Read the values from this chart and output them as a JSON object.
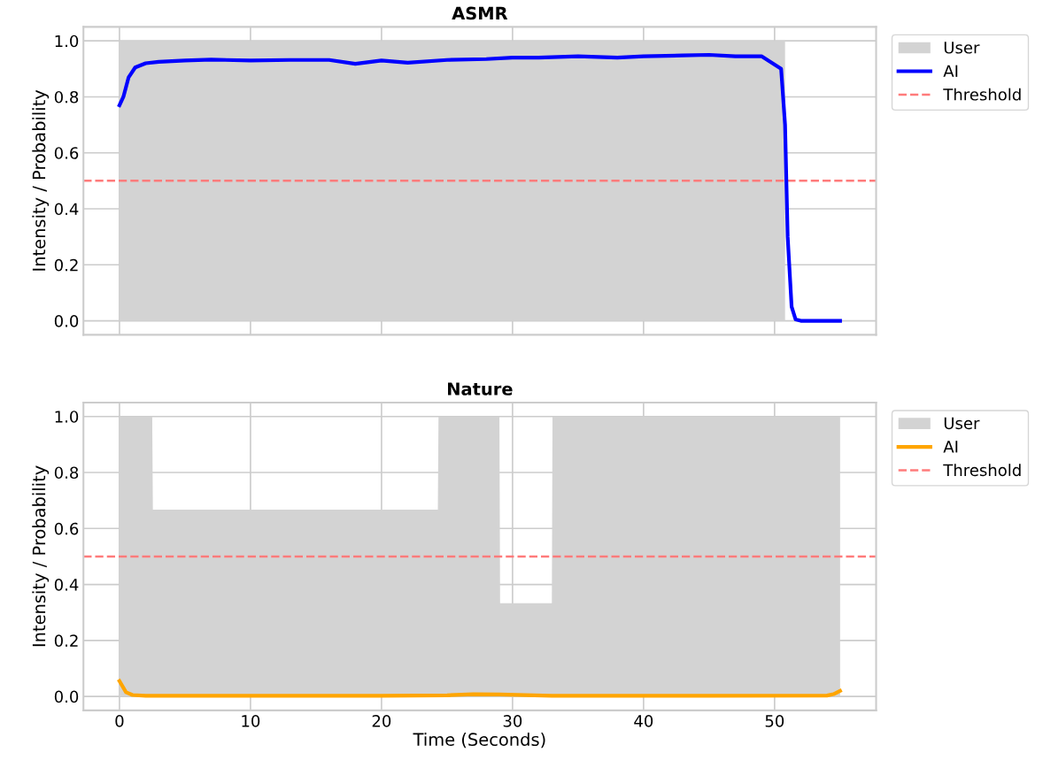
{
  "chart_data": [
    {
      "type": "line",
      "title": "ASMR",
      "ylabel": "Intensity / Probability",
      "xlim": [
        -2.75,
        57.75
      ],
      "xticks": [
        0,
        10,
        20,
        30,
        40,
        50
      ],
      "ylim": [
        -0.05,
        1.05
      ],
      "yticks": [
        {
          "value": 0,
          "label": "0.0"
        },
        {
          "value": 0.2,
          "label": "0.2"
        },
        {
          "value": 0.4,
          "label": "0.4"
        },
        {
          "value": 0.6,
          "label": "0.6"
        },
        {
          "value": 0.8,
          "label": "0.8"
        },
        {
          "value": 1,
          "label": "1.0"
        }
      ],
      "grid": true,
      "legend": "right",
      "tick_labels": "y",
      "series": [
        {
          "name": "User",
          "type": "area",
          "color": "#d3d3d3",
          "x": [
            0,
            50.8
          ],
          "values": [
            1,
            1
          ]
        },
        {
          "name": "AI",
          "color": "#0000ff",
          "x": [
            0,
            0.3,
            0.7,
            1.2,
            2,
            3,
            5,
            7,
            10,
            13,
            16,
            18,
            20,
            22,
            25,
            28,
            30,
            32,
            35,
            38,
            40,
            43,
            45,
            47,
            49,
            50.5,
            50.8,
            51,
            51.3,
            51.6,
            52,
            55
          ],
          "values": [
            0.77,
            0.8,
            0.87,
            0.905,
            0.92,
            0.925,
            0.93,
            0.933,
            0.93,
            0.932,
            0.932,
            0.918,
            0.93,
            0.922,
            0.932,
            0.935,
            0.94,
            0.94,
            0.945,
            0.94,
            0.945,
            0.948,
            0.95,
            0.945,
            0.945,
            0.9,
            0.7,
            0.3,
            0.05,
            0.005,
            0.0,
            0.0
          ]
        }
      ],
      "ref_lines": [
        {
          "axis": "y",
          "value": 0.5,
          "label": "Threshold",
          "color": "#ff7b7b",
          "line_style": "dashed"
        }
      ]
    },
    {
      "type": "line",
      "title": "Nature",
      "xlabel": "Time (Seconds)",
      "ylabel": "Intensity / Probability",
      "xlim": [
        -2.75,
        57.75
      ],
      "xticks": [
        0,
        10,
        20,
        30,
        40,
        50
      ],
      "ylim": [
        -0.05,
        1.05
      ],
      "yticks": [
        {
          "value": 0,
          "label": "0.0"
        },
        {
          "value": 0.2,
          "label": "0.2"
        },
        {
          "value": 0.4,
          "label": "0.4"
        },
        {
          "value": 0.6,
          "label": "0.6"
        },
        {
          "value": 0.8,
          "label": "0.8"
        },
        {
          "value": 1,
          "label": "1.0"
        }
      ],
      "grid": true,
      "legend": "right",
      "series": [
        {
          "name": "User",
          "type": "area",
          "color": "#d3d3d3",
          "x": [
            0,
            2.5,
            2.55,
            24.3,
            24.35,
            29,
            29.05,
            33,
            33.05,
            55
          ],
          "values": [
            1,
            1,
            0.667,
            0.667,
            1,
            1,
            0.333,
            0.333,
            1,
            1
          ]
        },
        {
          "name": "AI",
          "color": "#ffa500",
          "x": [
            0,
            0.5,
            1,
            2,
            10,
            20,
            25,
            27,
            29,
            33,
            45,
            54,
            54.5,
            55
          ],
          "values": [
            0.055,
            0.015,
            0.005,
            0.002,
            0.002,
            0.002,
            0.004,
            0.008,
            0.007,
            0.002,
            0.002,
            0.003,
            0.008,
            0.02
          ]
        }
      ],
      "ref_lines": [
        {
          "axis": "y",
          "value": 0.5,
          "label": "Threshold",
          "color": "#ff7b7b",
          "line_style": "dashed"
        }
      ]
    }
  ]
}
